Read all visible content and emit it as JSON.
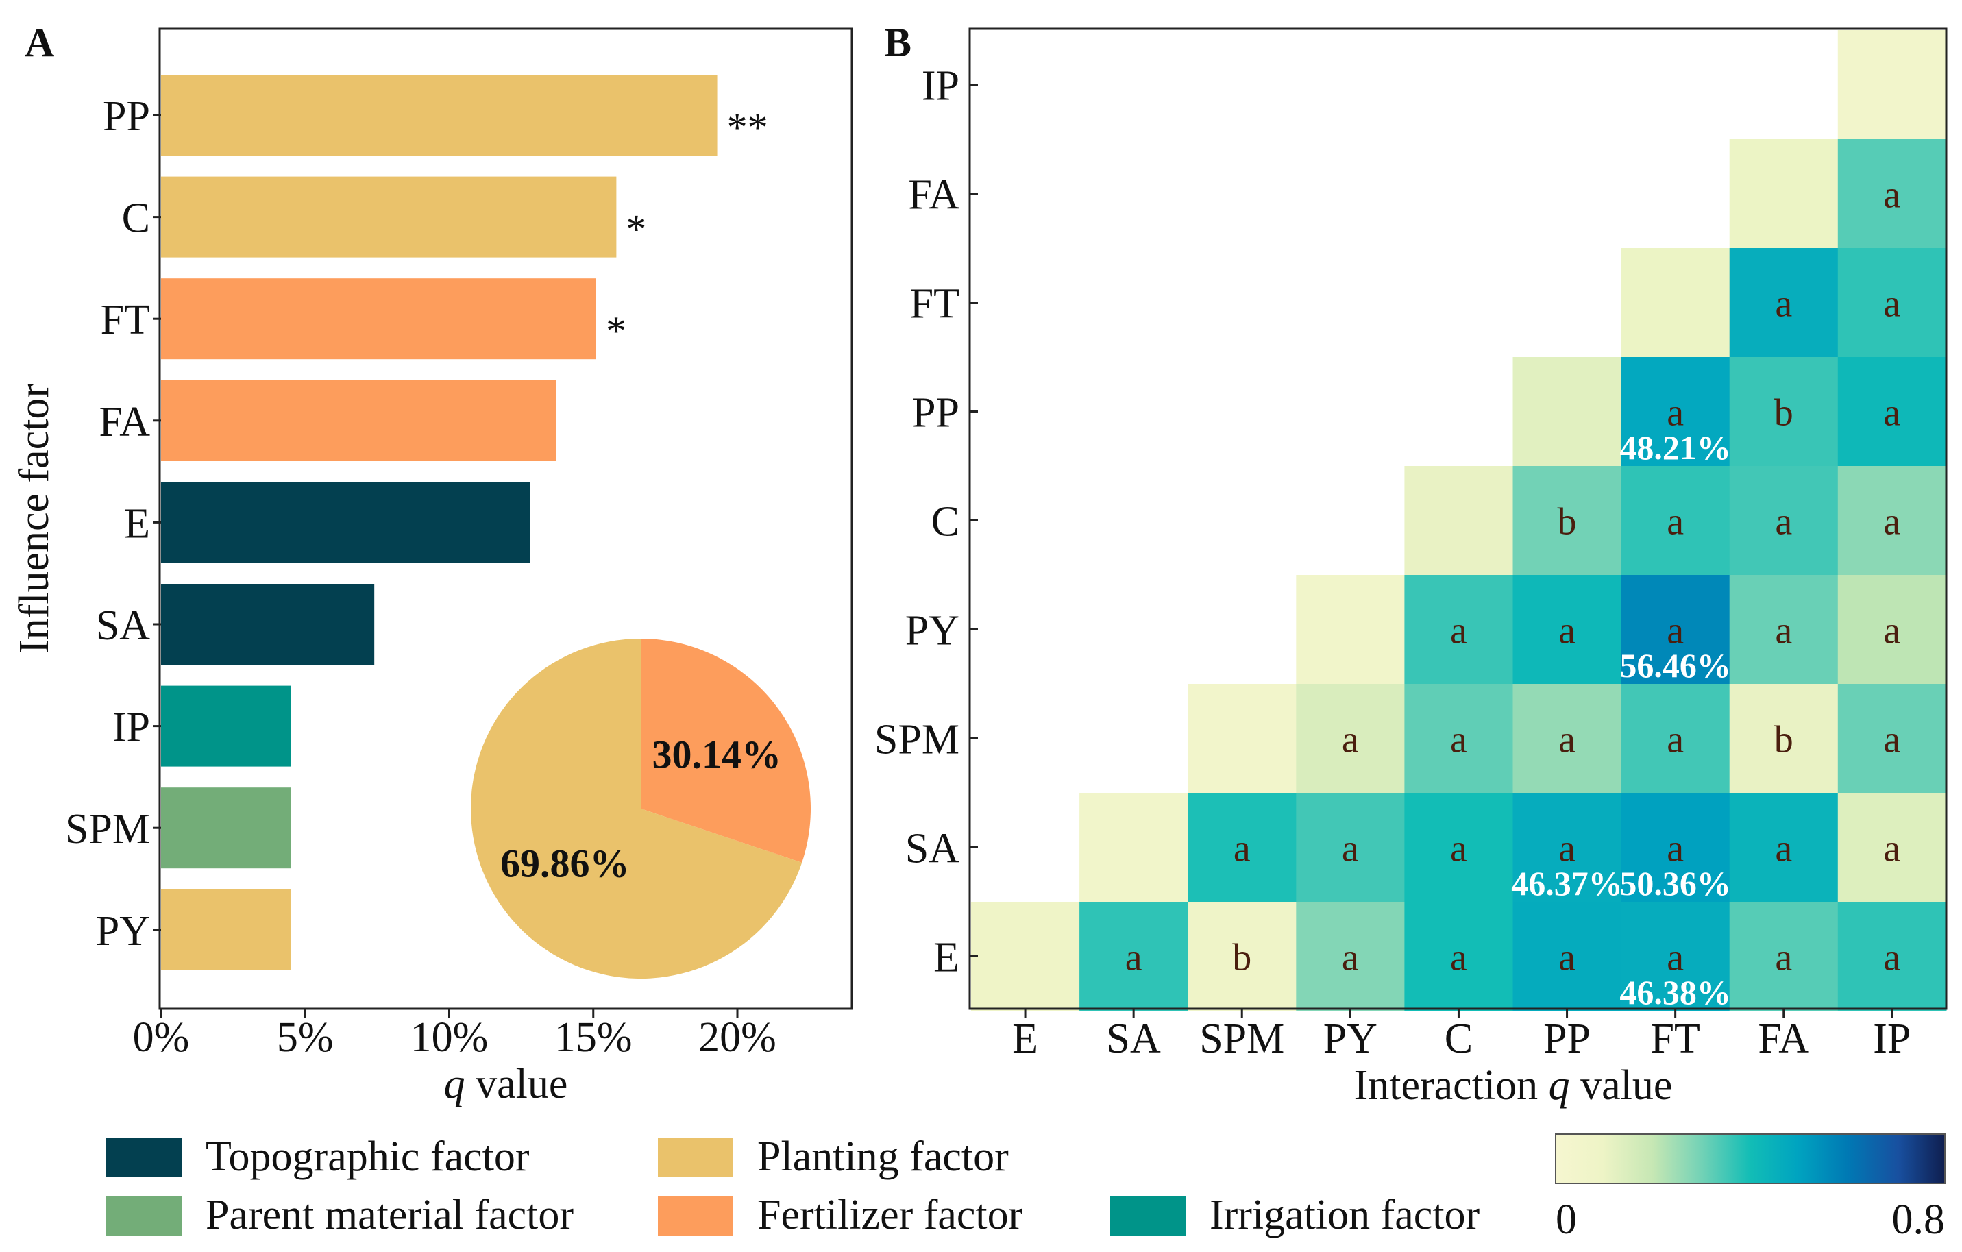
{
  "panel_a": {
    "label": "A",
    "ylabel": "Influence factor",
    "xlabel_italic": "q",
    "xlabel_rest": " value",
    "pie": {
      "slices": [
        {
          "name": "Planting factor",
          "value": 69.86,
          "label": "69.86%",
          "color": "#EAC26B"
        },
        {
          "name": "Fertilizer factor",
          "value": 30.14,
          "label": "30.14%",
          "color": "#FD9D5C"
        }
      ]
    }
  },
  "panel_b": {
    "label": "B",
    "xlabel_rest": "Interaction ",
    "xlabel_italic": "q",
    "xlabel_tail": " value",
    "colorbar": {
      "min_label": "0",
      "max_label": "0.8"
    }
  },
  "legend": [
    {
      "name": "Topographic factor",
      "color": "#034050"
    },
    {
      "name": "Planting factor",
      "color": "#EAC26B"
    },
    {
      "name": "Parent material factor",
      "color": "#73AD78"
    },
    {
      "name": "Fertilizer factor",
      "color": "#FD9D5C"
    },
    {
      "name": "Irrigation factor",
      "color": "#009489"
    }
  ],
  "chart_data": [
    {
      "type": "bar",
      "orientation": "horizontal",
      "title": "A",
      "xlabel": "q value",
      "ylabel": "Influence factor",
      "xlim": [
        0,
        0.24
      ],
      "xticks": [
        0,
        0.05,
        0.1,
        0.15,
        0.2
      ],
      "xtick_labels": [
        "0%",
        "5%",
        "10%",
        "15%",
        "20%"
      ],
      "categories": [
        "PP",
        "C",
        "FT",
        "FA",
        "E",
        "SA",
        "IP",
        "SPM",
        "PY"
      ],
      "values": [
        0.193,
        0.158,
        0.151,
        0.137,
        0.128,
        0.074,
        0.045,
        0.045,
        0.045
      ],
      "groups": [
        "Planting factor",
        "Planting factor",
        "Fertilizer factor",
        "Fertilizer factor",
        "Topographic factor",
        "Topographic factor",
        "Irrigation factor",
        "Parent material factor",
        "Planting factor"
      ],
      "significance": [
        "**",
        "*",
        "*",
        "",
        "",
        "",
        "",
        "",
        ""
      ]
    },
    {
      "type": "heatmap",
      "title": "B",
      "xlabel": "Interaction q value",
      "x_categories": [
        "E",
        "SA",
        "SPM",
        "PY",
        "C",
        "PP",
        "FT",
        "FA",
        "IP"
      ],
      "y_categories": [
        "IP",
        "FA",
        "FT",
        "PP",
        "C",
        "PY",
        "SPM",
        "SA",
        "E"
      ],
      "color_range": [
        0,
        0.8
      ],
      "cells": [
        {
          "x": "IP",
          "y": "IP",
          "q": 0.05,
          "sig": ""
        },
        {
          "x": "FA",
          "y": "FA",
          "q": 0.1,
          "sig": ""
        },
        {
          "x": "IP",
          "y": "FA",
          "q": 0.33,
          "sig": "a"
        },
        {
          "x": "FT",
          "y": "FT",
          "q": 0.1,
          "sig": ""
        },
        {
          "x": "FA",
          "y": "FT",
          "q": 0.46,
          "sig": "a"
        },
        {
          "x": "IP",
          "y": "FT",
          "q": 0.37,
          "sig": "a"
        },
        {
          "x": "PP",
          "y": "PP",
          "q": 0.13,
          "sig": ""
        },
        {
          "x": "FT",
          "y": "PP",
          "q": 0.4821,
          "sig": "a",
          "label": "48.21%"
        },
        {
          "x": "FA",
          "y": "PP",
          "q": 0.36,
          "sig": "b"
        },
        {
          "x": "IP",
          "y": "PP",
          "q": 0.42,
          "sig": "a"
        },
        {
          "x": "C",
          "y": "C",
          "q": 0.11,
          "sig": ""
        },
        {
          "x": "PP",
          "y": "C",
          "q": 0.3,
          "sig": "b"
        },
        {
          "x": "FT",
          "y": "C",
          "q": 0.37,
          "sig": "a"
        },
        {
          "x": "FA",
          "y": "C",
          "q": 0.35,
          "sig": "a"
        },
        {
          "x": "IP",
          "y": "C",
          "q": 0.27,
          "sig": "a"
        },
        {
          "x": "PY",
          "y": "PY",
          "q": 0.06,
          "sig": ""
        },
        {
          "x": "C",
          "y": "PY",
          "q": 0.36,
          "sig": "a"
        },
        {
          "x": "PP",
          "y": "PY",
          "q": 0.42,
          "sig": "a"
        },
        {
          "x": "FT",
          "y": "PY",
          "q": 0.5646,
          "sig": "a",
          "label": "56.46%"
        },
        {
          "x": "FA",
          "y": "PY",
          "q": 0.31,
          "sig": "a"
        },
        {
          "x": "IP",
          "y": "PY",
          "q": 0.21,
          "sig": "a"
        },
        {
          "x": "SPM",
          "y": "SPM",
          "q": 0.05,
          "sig": ""
        },
        {
          "x": "PY",
          "y": "SPM",
          "q": 0.15,
          "sig": "a"
        },
        {
          "x": "C",
          "y": "SPM",
          "q": 0.32,
          "sig": "a"
        },
        {
          "x": "PP",
          "y": "SPM",
          "q": 0.26,
          "sig": "a"
        },
        {
          "x": "FT",
          "y": "SPM",
          "q": 0.35,
          "sig": "a"
        },
        {
          "x": "FA",
          "y": "SPM",
          "q": 0.11,
          "sig": "b"
        },
        {
          "x": "IP",
          "y": "SPM",
          "q": 0.31,
          "sig": "a"
        },
        {
          "x": "SA",
          "y": "SA",
          "q": 0.06,
          "sig": ""
        },
        {
          "x": "SPM",
          "y": "SA",
          "q": 0.39,
          "sig": "a"
        },
        {
          "x": "PY",
          "y": "SA",
          "q": 0.35,
          "sig": "a"
        },
        {
          "x": "C",
          "y": "SA",
          "q": 0.4,
          "sig": "a"
        },
        {
          "x": "PP",
          "y": "SA",
          "q": 0.4637,
          "sig": "a",
          "label": "46.37%"
        },
        {
          "x": "FT",
          "y": "SA",
          "q": 0.5036,
          "sig": "a",
          "label": "50.36%"
        },
        {
          "x": "FA",
          "y": "SA",
          "q": 0.44,
          "sig": "a"
        },
        {
          "x": "IP",
          "y": "SA",
          "q": 0.14,
          "sig": "a"
        },
        {
          "x": "E",
          "y": "E",
          "q": 0.09,
          "sig": ""
        },
        {
          "x": "SA",
          "y": "E",
          "q": 0.37,
          "sig": "a"
        },
        {
          "x": "SPM",
          "y": "E",
          "q": 0.08,
          "sig": "b"
        },
        {
          "x": "PY",
          "y": "E",
          "q": 0.28,
          "sig": "a"
        },
        {
          "x": "C",
          "y": "E",
          "q": 0.4,
          "sig": "a"
        },
        {
          "x": "PP",
          "y": "E",
          "q": 0.47,
          "sig": "a"
        },
        {
          "x": "FT",
          "y": "E",
          "q": 0.4638,
          "sig": "a",
          "label": "46.38%"
        },
        {
          "x": "FA",
          "y": "E",
          "q": 0.33,
          "sig": "a"
        },
        {
          "x": "IP",
          "y": "E",
          "q": 0.37,
          "sig": "a"
        }
      ]
    }
  ]
}
